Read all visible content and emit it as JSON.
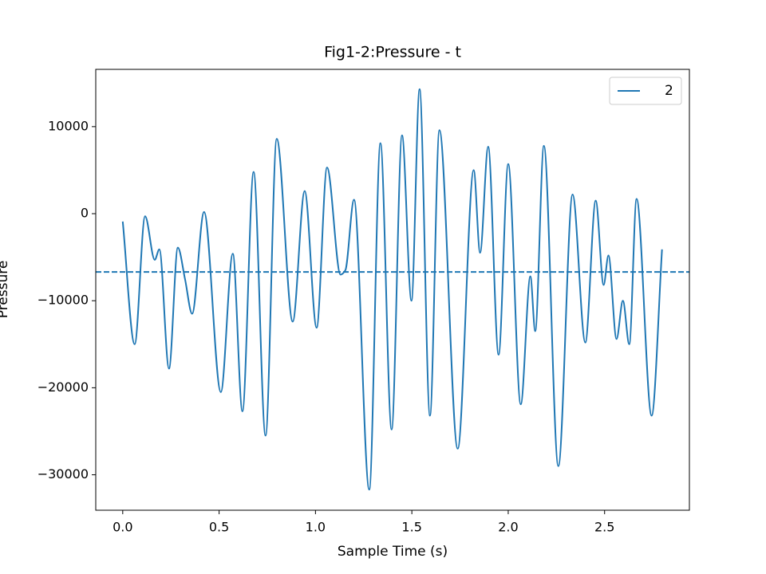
{
  "chart_data": {
    "type": "line",
    "title": "Fig1-2:Pressure - t",
    "x_label": "Sample Time (s)",
    "y_label": "Pressure",
    "xlim": [
      -0.14,
      2.94
    ],
    "ylim": [
      -34070,
      16580
    ],
    "xticks": [
      {
        "value": 0,
        "label": "0.0"
      },
      0.5,
      {
        "value": 1,
        "label": "1.0"
      },
      1.5,
      {
        "value": 2,
        "label": "2.0"
      },
      2.5
    ],
    "yticks": [
      {
        "value": -30000,
        "label": "−30000"
      },
      {
        "value": -20000,
        "label": "−20000"
      },
      {
        "value": -10000,
        "label": "−10000"
      },
      0,
      10000
    ],
    "legend": "upper right",
    "series": [
      {
        "name": "2",
        "color": "#1f77b4",
        "x": [
          0,
          0.062,
          0.116,
          0.166,
          0.19,
          0.24,
          0.286,
          0.323,
          0.36,
          0.422,
          0.509,
          0.571,
          0.621,
          0.679,
          0.741,
          0.799,
          0.882,
          0.944,
          1.006,
          1.06,
          1.13,
          1.155,
          1.2,
          1.279,
          1.337,
          1.395,
          1.449,
          1.498,
          1.54,
          1.594,
          1.643,
          1.738,
          1.821,
          1.854,
          1.896,
          1.95,
          2.0,
          2.065,
          2.115,
          2.14,
          2.185,
          2.26,
          2.334,
          2.4,
          2.454,
          2.495,
          2.52,
          2.562,
          2.595,
          2.628,
          2.666,
          2.744,
          2.798
        ],
        "values": [
          -900,
          -15000,
          -300,
          -5300,
          -4100,
          -17800,
          -3900,
          -7500,
          -11500,
          200,
          -20500,
          -4600,
          -22700,
          4800,
          -25500,
          8600,
          -12400,
          2600,
          -13100,
          5300,
          -7000,
          -6500,
          1600,
          -31700,
          8100,
          -24800,
          9000,
          -10000,
          14300,
          -23200,
          9600,
          -27000,
          5000,
          -4500,
          7700,
          -16200,
          5700,
          -21900,
          -7200,
          -13500,
          7800,
          -29000,
          2200,
          -14800,
          1500,
          -8200,
          -4800,
          -14400,
          -10000,
          -15000,
          1700,
          -23200,
          -4100
        ]
      }
    ],
    "hline": {
      "value": -6700,
      "color": "#1f77b4",
      "style": "dashed"
    }
  }
}
